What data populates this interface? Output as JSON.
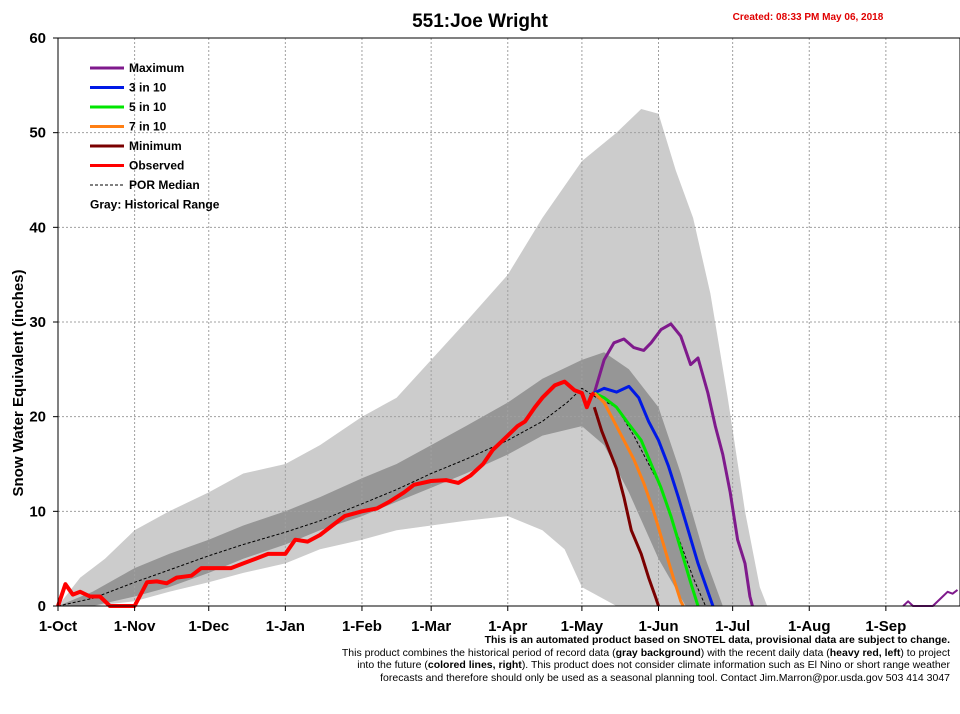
{
  "chart_data": {
    "type": "line",
    "title": "551:Joe Wright",
    "created": "Created: 08:33 PM May 06, 2018",
    "ylabel": "Snow Water Equivalent (inches)",
    "xlabel": "",
    "ylim": [
      0,
      60
    ],
    "yticks": [
      0,
      10,
      20,
      30,
      40,
      50,
      60
    ],
    "xlim": [
      "2017-10-01",
      "2018-09-30"
    ],
    "xticks": [
      {
        "label": "1-Oct",
        "date": "2017-10-01"
      },
      {
        "label": "1-Nov",
        "date": "2017-11-01"
      },
      {
        "label": "1-Dec",
        "date": "2017-12-01"
      },
      {
        "label": "1-Jan",
        "date": "2018-01-01"
      },
      {
        "label": "1-Feb",
        "date": "2018-02-01"
      },
      {
        "label": "1-Mar",
        "date": "2018-03-01"
      },
      {
        "label": "1-Apr",
        "date": "2018-04-01"
      },
      {
        "label": "1-May",
        "date": "2018-05-01"
      },
      {
        "label": "1-Jun",
        "date": "2018-06-01"
      },
      {
        "label": "1-Jul",
        "date": "2018-07-01"
      },
      {
        "label": "1-Aug",
        "date": "2018-08-01"
      },
      {
        "label": "1-Sep",
        "date": "2018-09-01"
      }
    ],
    "grid": true,
    "legend_position": "top-left",
    "legend": [
      {
        "label": "Maximum",
        "color": "#7f1a8c",
        "style": "solid"
      },
      {
        "label": "3 in 10",
        "color": "#0019e6",
        "style": "solid"
      },
      {
        "label": "5 in 10",
        "color": "#00e600",
        "style": "solid"
      },
      {
        "label": "7 in 10",
        "color": "#ff7f14",
        "style": "solid"
      },
      {
        "label": "Minimum",
        "color": "#7a0000",
        "style": "solid"
      },
      {
        "label": "Observed",
        "color": "#ff0000",
        "style": "solid"
      },
      {
        "label": "POR Median",
        "color": "#000000",
        "style": "dashed"
      }
    ],
    "legend_note": "Gray: Historical Range",
    "bands": [
      {
        "fill": "#cccccc",
        "upper": [
          [
            "2017-10-01",
            0
          ],
          [
            "2017-10-10",
            3
          ],
          [
            "2017-10-20",
            5
          ],
          [
            "2017-11-01",
            8
          ],
          [
            "2017-11-15",
            10
          ],
          [
            "2017-12-01",
            12
          ],
          [
            "2017-12-15",
            14
          ],
          [
            "2018-01-01",
            15
          ],
          [
            "2018-01-15",
            17
          ],
          [
            "2018-02-01",
            20
          ],
          [
            "2018-02-15",
            22
          ],
          [
            "2018-03-01",
            26
          ],
          [
            "2018-03-15",
            30
          ],
          [
            "2018-04-01",
            35
          ],
          [
            "2018-04-15",
            41
          ],
          [
            "2018-05-01",
            47
          ],
          [
            "2018-05-15",
            50
          ],
          [
            "2018-05-25",
            52.5
          ],
          [
            "2018-06-01",
            52
          ],
          [
            "2018-06-08",
            46
          ],
          [
            "2018-06-15",
            41
          ],
          [
            "2018-06-22",
            33
          ],
          [
            "2018-06-29",
            22
          ],
          [
            "2018-07-06",
            10
          ],
          [
            "2018-07-12",
            2
          ],
          [
            "2018-07-15",
            0
          ]
        ],
        "lower": [
          [
            "2018-07-15",
            0
          ],
          [
            "2018-06-15",
            0
          ],
          [
            "2018-05-15",
            0
          ],
          [
            "2018-05-01",
            2
          ],
          [
            "2018-04-24",
            6
          ],
          [
            "2018-04-15",
            8
          ],
          [
            "2018-04-01",
            9.5
          ],
          [
            "2018-03-15",
            9
          ],
          [
            "2018-03-01",
            8.5
          ],
          [
            "2018-02-15",
            8
          ],
          [
            "2018-02-01",
            7
          ],
          [
            "2018-01-15",
            6
          ],
          [
            "2018-01-01",
            4.5
          ],
          [
            "2017-12-15",
            3.5
          ],
          [
            "2017-12-01",
            2.5
          ],
          [
            "2017-11-15",
            1.5
          ],
          [
            "2017-11-01",
            0.5
          ],
          [
            "2017-10-15",
            0
          ],
          [
            "2017-10-01",
            0
          ]
        ]
      },
      {
        "fill": "#969696",
        "upper": [
          [
            "2017-10-01",
            0
          ],
          [
            "2017-10-15",
            1.5
          ],
          [
            "2017-11-01",
            4
          ],
          [
            "2017-11-15",
            5.5
          ],
          [
            "2017-12-01",
            7
          ],
          [
            "2017-12-15",
            8.5
          ],
          [
            "2018-01-01",
            10
          ],
          [
            "2018-01-15",
            11.5
          ],
          [
            "2018-02-01",
            13.5
          ],
          [
            "2018-02-15",
            15
          ],
          [
            "2018-03-01",
            17
          ],
          [
            "2018-03-15",
            19
          ],
          [
            "2018-04-01",
            21.5
          ],
          [
            "2018-04-15",
            24
          ],
          [
            "2018-05-01",
            26
          ],
          [
            "2018-05-10",
            26.8
          ],
          [
            "2018-05-20",
            25
          ],
          [
            "2018-06-01",
            21
          ],
          [
            "2018-06-10",
            14
          ],
          [
            "2018-06-20",
            5
          ],
          [
            "2018-06-27",
            0
          ]
        ],
        "lower": [
          [
            "2018-06-27",
            0
          ],
          [
            "2018-06-12",
            0
          ],
          [
            "2018-06-01",
            5
          ],
          [
            "2018-05-20",
            12
          ],
          [
            "2018-05-10",
            17
          ],
          [
            "2018-05-01",
            19
          ],
          [
            "2018-04-15",
            18
          ],
          [
            "2018-04-01",
            16
          ],
          [
            "2018-03-15",
            14
          ],
          [
            "2018-03-01",
            12.5
          ],
          [
            "2018-02-15",
            11
          ],
          [
            "2018-02-01",
            9.5
          ],
          [
            "2018-01-15",
            8
          ],
          [
            "2018-01-01",
            6.5
          ],
          [
            "2017-12-15",
            5
          ],
          [
            "2017-12-01",
            3.5
          ],
          [
            "2017-11-15",
            2
          ],
          [
            "2017-11-01",
            1
          ],
          [
            "2017-10-15",
            0
          ],
          [
            "2017-10-01",
            0
          ]
        ]
      }
    ],
    "series": [
      {
        "name": "POR Median",
        "color": "#000000",
        "width": 1,
        "dash": "3 2",
        "points": [
          [
            "2017-10-01",
            0
          ],
          [
            "2017-10-15",
            0.8
          ],
          [
            "2017-11-01",
            2.5
          ],
          [
            "2017-11-15",
            3.8
          ],
          [
            "2017-12-01",
            5.3
          ],
          [
            "2017-12-15",
            6.5
          ],
          [
            "2018-01-01",
            7.8
          ],
          [
            "2018-01-15",
            9
          ],
          [
            "2018-02-01",
            10.8
          ],
          [
            "2018-02-15",
            12.3
          ],
          [
            "2018-03-01",
            14
          ],
          [
            "2018-03-15",
            15.5
          ],
          [
            "2018-04-01",
            17.5
          ],
          [
            "2018-04-15",
            19.5
          ],
          [
            "2018-04-25",
            21.5
          ],
          [
            "2018-05-01",
            23
          ],
          [
            "2018-05-07",
            22
          ],
          [
            "2018-05-15",
            21
          ],
          [
            "2018-05-22",
            18
          ],
          [
            "2018-06-01",
            13
          ],
          [
            "2018-06-08",
            8
          ],
          [
            "2018-06-15",
            3
          ],
          [
            "2018-06-20",
            0
          ]
        ]
      },
      {
        "name": "Maximum",
        "color": "#7f1a8c",
        "width": 3,
        "points": [
          [
            "2018-05-06",
            22.5
          ],
          [
            "2018-05-10",
            26
          ],
          [
            "2018-05-14",
            27.8
          ],
          [
            "2018-05-18",
            28.2
          ],
          [
            "2018-05-22",
            27.3
          ],
          [
            "2018-05-26",
            27
          ],
          [
            "2018-05-29",
            27.8
          ],
          [
            "2018-06-02",
            29.2
          ],
          [
            "2018-06-06",
            29.8
          ],
          [
            "2018-06-10",
            28.5
          ],
          [
            "2018-06-14",
            25.5
          ],
          [
            "2018-06-17",
            26.2
          ],
          [
            "2018-06-21",
            22.5
          ],
          [
            "2018-06-24",
            19
          ],
          [
            "2018-06-27",
            16
          ],
          [
            "2018-06-30",
            12
          ],
          [
            "2018-07-03",
            7
          ],
          [
            "2018-07-06",
            4.5
          ],
          [
            "2018-07-08",
            1
          ],
          [
            "2018-07-09",
            0
          ]
        ]
      },
      {
        "name": "3 in 10",
        "color": "#0019e6",
        "width": 3,
        "points": [
          [
            "2018-05-06",
            22.5
          ],
          [
            "2018-05-10",
            23
          ],
          [
            "2018-05-15",
            22.6
          ],
          [
            "2018-05-20",
            23.2
          ],
          [
            "2018-05-24",
            22
          ],
          [
            "2018-05-28",
            19.5
          ],
          [
            "2018-06-01",
            17.5
          ],
          [
            "2018-06-05",
            14.8
          ],
          [
            "2018-06-09",
            11.5
          ],
          [
            "2018-06-13",
            8
          ],
          [
            "2018-06-17",
            4.5
          ],
          [
            "2018-06-21",
            1.5
          ],
          [
            "2018-06-23",
            0
          ]
        ]
      },
      {
        "name": "5 in 10",
        "color": "#00e600",
        "width": 3,
        "points": [
          [
            "2018-05-06",
            22.5
          ],
          [
            "2018-05-10",
            22
          ],
          [
            "2018-05-15",
            21
          ],
          [
            "2018-05-20",
            19.2
          ],
          [
            "2018-05-25",
            17.5
          ],
          [
            "2018-05-29",
            15
          ],
          [
            "2018-06-02",
            12.5
          ],
          [
            "2018-06-06",
            9.5
          ],
          [
            "2018-06-10",
            6
          ],
          [
            "2018-06-14",
            2.5
          ],
          [
            "2018-06-17",
            0
          ]
        ]
      },
      {
        "name": "7 in 10",
        "color": "#ff7f14",
        "width": 3,
        "points": [
          [
            "2018-05-06",
            22.5
          ],
          [
            "2018-05-10",
            21.5
          ],
          [
            "2018-05-14",
            19.5
          ],
          [
            "2018-05-18",
            17.5
          ],
          [
            "2018-05-22",
            15.5
          ],
          [
            "2018-05-26",
            13
          ],
          [
            "2018-05-30",
            10
          ],
          [
            "2018-06-03",
            6.5
          ],
          [
            "2018-06-07",
            3
          ],
          [
            "2018-06-10",
            0.5
          ],
          [
            "2018-06-11",
            0
          ]
        ]
      },
      {
        "name": "Minimum",
        "color": "#7a0000",
        "width": 3,
        "points": [
          [
            "2018-05-06",
            21
          ],
          [
            "2018-05-09",
            18.5
          ],
          [
            "2018-05-12",
            16.5
          ],
          [
            "2018-05-15",
            14.5
          ],
          [
            "2018-05-18",
            11.5
          ],
          [
            "2018-05-21",
            8
          ],
          [
            "2018-05-25",
            5.5
          ],
          [
            "2018-05-28",
            3
          ],
          [
            "2018-05-31",
            0.8
          ],
          [
            "2018-06-01",
            0
          ]
        ]
      },
      {
        "name": "Observed",
        "color": "#ff0000",
        "width": 4,
        "points": [
          [
            "2017-10-01",
            0
          ],
          [
            "2017-10-04",
            2.3
          ],
          [
            "2017-10-07",
            1.2
          ],
          [
            "2017-10-10",
            1.5
          ],
          [
            "2017-10-14",
            1
          ],
          [
            "2017-10-18",
            1
          ],
          [
            "2017-10-22",
            0
          ],
          [
            "2017-10-28",
            0
          ],
          [
            "2017-11-01",
            0
          ],
          [
            "2017-11-03",
            1
          ],
          [
            "2017-11-06",
            2.5
          ],
          [
            "2017-11-10",
            2.6
          ],
          [
            "2017-11-14",
            2.4
          ],
          [
            "2017-11-18",
            3
          ],
          [
            "2017-11-24",
            3.2
          ],
          [
            "2017-11-28",
            4
          ],
          [
            "2017-12-03",
            4
          ],
          [
            "2017-12-10",
            4
          ],
          [
            "2017-12-15",
            4.5
          ],
          [
            "2017-12-20",
            5
          ],
          [
            "2017-12-25",
            5.5
          ],
          [
            "2018-01-01",
            5.5
          ],
          [
            "2018-01-05",
            7
          ],
          [
            "2018-01-10",
            6.8
          ],
          [
            "2018-01-15",
            7.5
          ],
          [
            "2018-01-20",
            8.5
          ],
          [
            "2018-01-25",
            9.5
          ],
          [
            "2018-02-01",
            10
          ],
          [
            "2018-02-07",
            10.3
          ],
          [
            "2018-02-12",
            11
          ],
          [
            "2018-02-18",
            12
          ],
          [
            "2018-02-22",
            12.8
          ],
          [
            "2018-03-01",
            13.2
          ],
          [
            "2018-03-07",
            13.3
          ],
          [
            "2018-03-12",
            13
          ],
          [
            "2018-03-17",
            13.8
          ],
          [
            "2018-03-22",
            15
          ],
          [
            "2018-03-26",
            16.5
          ],
          [
            "2018-04-01",
            18
          ],
          [
            "2018-04-05",
            19
          ],
          [
            "2018-04-08",
            19.5
          ],
          [
            "2018-04-12",
            21
          ],
          [
            "2018-04-15",
            22
          ],
          [
            "2018-04-20",
            23.3
          ],
          [
            "2018-04-24",
            23.7
          ],
          [
            "2018-04-28",
            22.8
          ],
          [
            "2018-05-01",
            22.5
          ],
          [
            "2018-05-03",
            21
          ],
          [
            "2018-05-05",
            22.3
          ],
          [
            "2018-05-06",
            22.5
          ]
        ]
      },
      {
        "name": "Observed (new season)",
        "color": "#7f1a8c",
        "width": 2,
        "points": [
          [
            "2018-09-08",
            0
          ],
          [
            "2018-09-10",
            0.5
          ],
          [
            "2018-09-12",
            0
          ],
          [
            "2018-09-20",
            0
          ],
          [
            "2018-09-24",
            1
          ],
          [
            "2018-09-26",
            1.5
          ],
          [
            "2018-09-28",
            1.3
          ],
          [
            "2018-09-30",
            1.7
          ]
        ]
      }
    ]
  },
  "footer": {
    "line1": "This is an automated product based on SNOTEL data, provisional data are subject to change.",
    "line2a": "This product combines the historical period of record data (",
    "line2b": "gray background",
    "line2c": ") with the recent daily data (",
    "line2d": "heavy red, left",
    "line2e": ") to project",
    "line3a": "into the future (",
    "line3b": "colored lines, right",
    "line3c": "). This product does not consider climate information such as El Nino or short range weather",
    "line4": "forecasts and therefore should only be used as a seasonal planning tool. Contact Jim.Marron@por.usda.gov 503 414 3047"
  }
}
